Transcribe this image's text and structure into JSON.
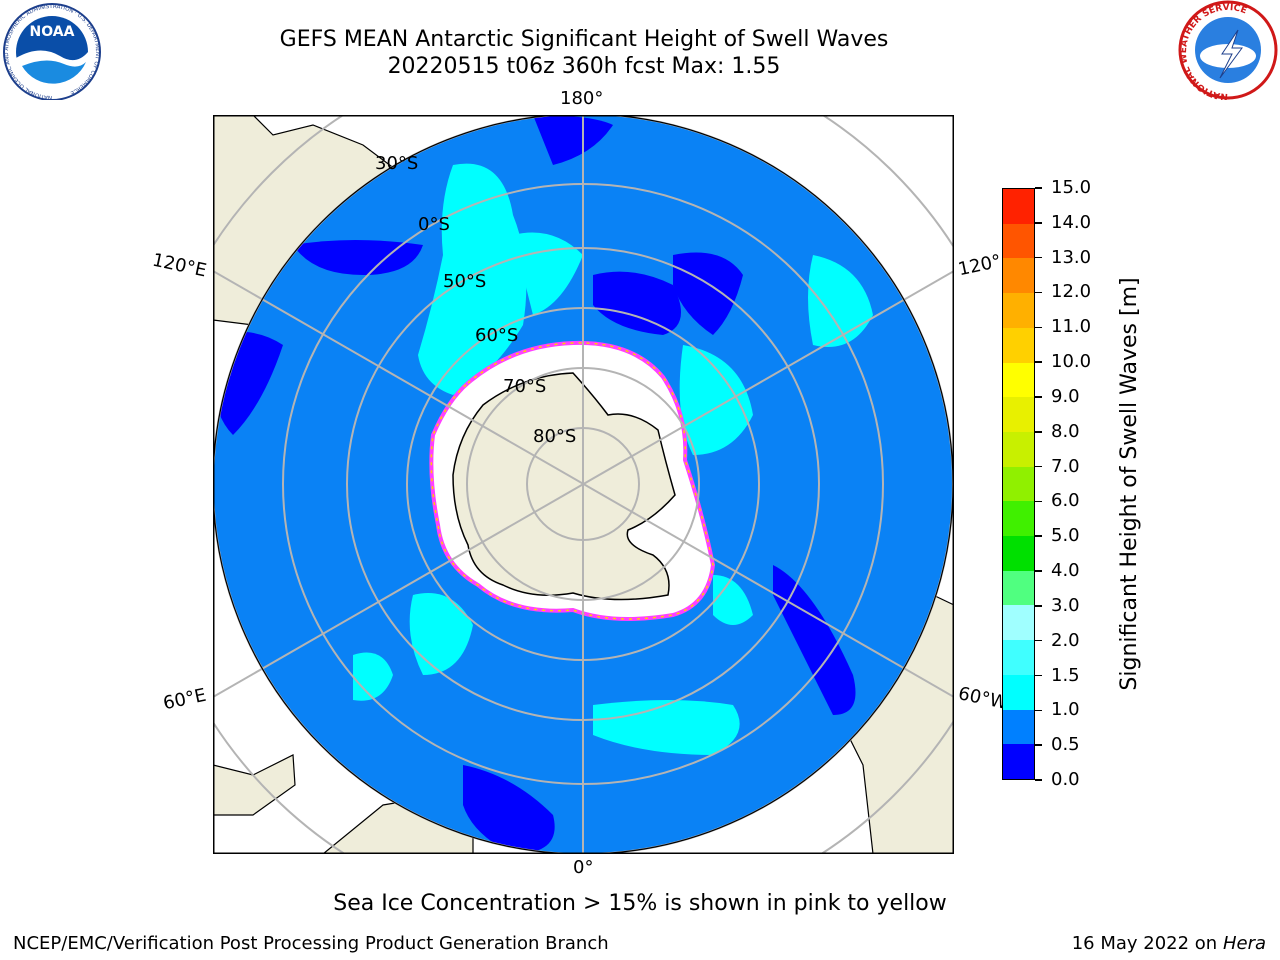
{
  "title": {
    "line1": "GEFS MEAN Antarctic Significant Height of Swell Waves",
    "line2": "20220515 t06z 360h fcst   Max: 1.55"
  },
  "logos": {
    "noaa_text": "NOAA",
    "noaa_ring": "NATIONAL OCEANIC AND ATMOSPHERIC ADMINISTRATION · U.S. DEPARTMENT OF COMMERCE",
    "nws_ring": "NATIONAL WEATHER SERVICE"
  },
  "map": {
    "longitude_labels": [
      "180°",
      "120°E",
      "120°",
      "60°E",
      "60°W",
      "0°"
    ],
    "latitude_labels": [
      "30°S",
      "0°S",
      "50°S",
      "60°S",
      "70°S",
      "80°S"
    ]
  },
  "colorbar": {
    "label": "Significant Height of Swell Waves [m]",
    "ticks": [
      "0.0",
      "0.5",
      "1.0",
      "1.5",
      "2.0",
      "3.0",
      "4.0",
      "5.0",
      "6.0",
      "7.0",
      "8.0",
      "9.0",
      "10.0",
      "11.0",
      "12.0",
      "13.0",
      "14.0",
      "15.0"
    ],
    "colors": [
      "#0000ff",
      "#0080ff",
      "#00ffff",
      "#40ffff",
      "#a0ffff",
      "#50ff80",
      "#00e000",
      "#40f000",
      "#90f000",
      "#c8f000",
      "#e8f000",
      "#ffff00",
      "#ffd000",
      "#ffb000",
      "#ff8800",
      "#ff5500",
      "#ff2200"
    ]
  },
  "footer": {
    "note": "Sea Ice Concentration > 15% is shown in pink to yellow",
    "left": "NCEP/EMC/Verification Post Processing Product Generation Branch",
    "right_prefix": "16 May 2022 on",
    "right_host": "Hera"
  },
  "colors": {
    "ocean": "#0a82f5",
    "low_swell": "#0000ff",
    "swell_cyan": "#00ffff",
    "land": "#efedda",
    "ice": "#ffffff",
    "ice_edge": "#ff40ff"
  }
}
